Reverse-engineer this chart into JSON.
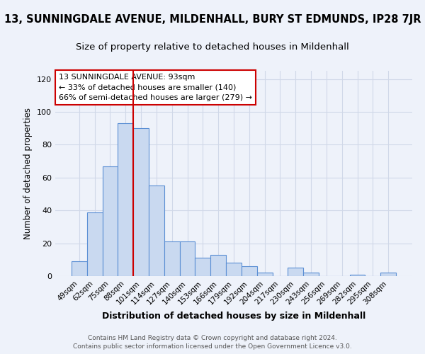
{
  "title": "13, SUNNINGDALE AVENUE, MILDENHALL, BURY ST EDMUNDS, IP28 7JR",
  "subtitle": "Size of property relative to detached houses in Mildenhall",
  "xlabel": "Distribution of detached houses by size in Mildenhall",
  "ylabel": "Number of detached properties",
  "categories": [
    "49sqm",
    "62sqm",
    "75sqm",
    "88sqm",
    "101sqm",
    "114sqm",
    "127sqm",
    "140sqm",
    "153sqm",
    "166sqm",
    "179sqm",
    "192sqm",
    "204sqm",
    "217sqm",
    "230sqm",
    "243sqm",
    "256sqm",
    "269sqm",
    "282sqm",
    "295sqm",
    "308sqm"
  ],
  "values": [
    9,
    39,
    67,
    93,
    90,
    55,
    21,
    21,
    11,
    13,
    8,
    6,
    2,
    0,
    5,
    2,
    0,
    0,
    1,
    0,
    2
  ],
  "bar_color": "#c9d9f0",
  "bar_edge_color": "#5b8fd4",
  "ylim": [
    0,
    125
  ],
  "yticks": [
    0,
    20,
    40,
    60,
    80,
    100,
    120
  ],
  "annotation_line1": "13 SUNNINGDALE AVENUE: 93sqm",
  "annotation_line2": "← 33% of detached houses are smaller (140)",
  "annotation_line3": "66% of semi-detached houses are larger (279) →",
  "annotation_box_color": "#ffffff",
  "annotation_box_edge_color": "#cc0000",
  "property_line_color": "#cc0000",
  "grid_color": "#d0d8e8",
  "background_color": "#eef2fa",
  "footer1": "Contains HM Land Registry data © Crown copyright and database right 2024.",
  "footer2": "Contains public sector information licensed under the Open Government Licence v3.0.",
  "title_fontsize": 10.5,
  "subtitle_fontsize": 9.5
}
